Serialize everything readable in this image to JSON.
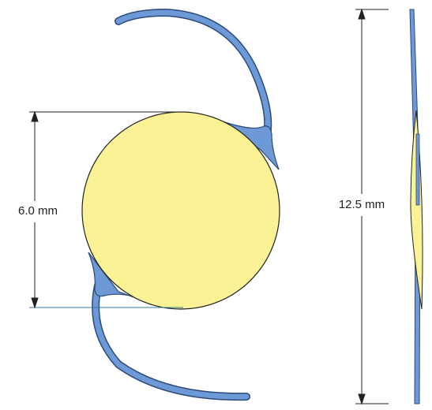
{
  "labels": {
    "optic_diameter": "6.0 mm",
    "overall_length": "12.5 mm"
  }
}
